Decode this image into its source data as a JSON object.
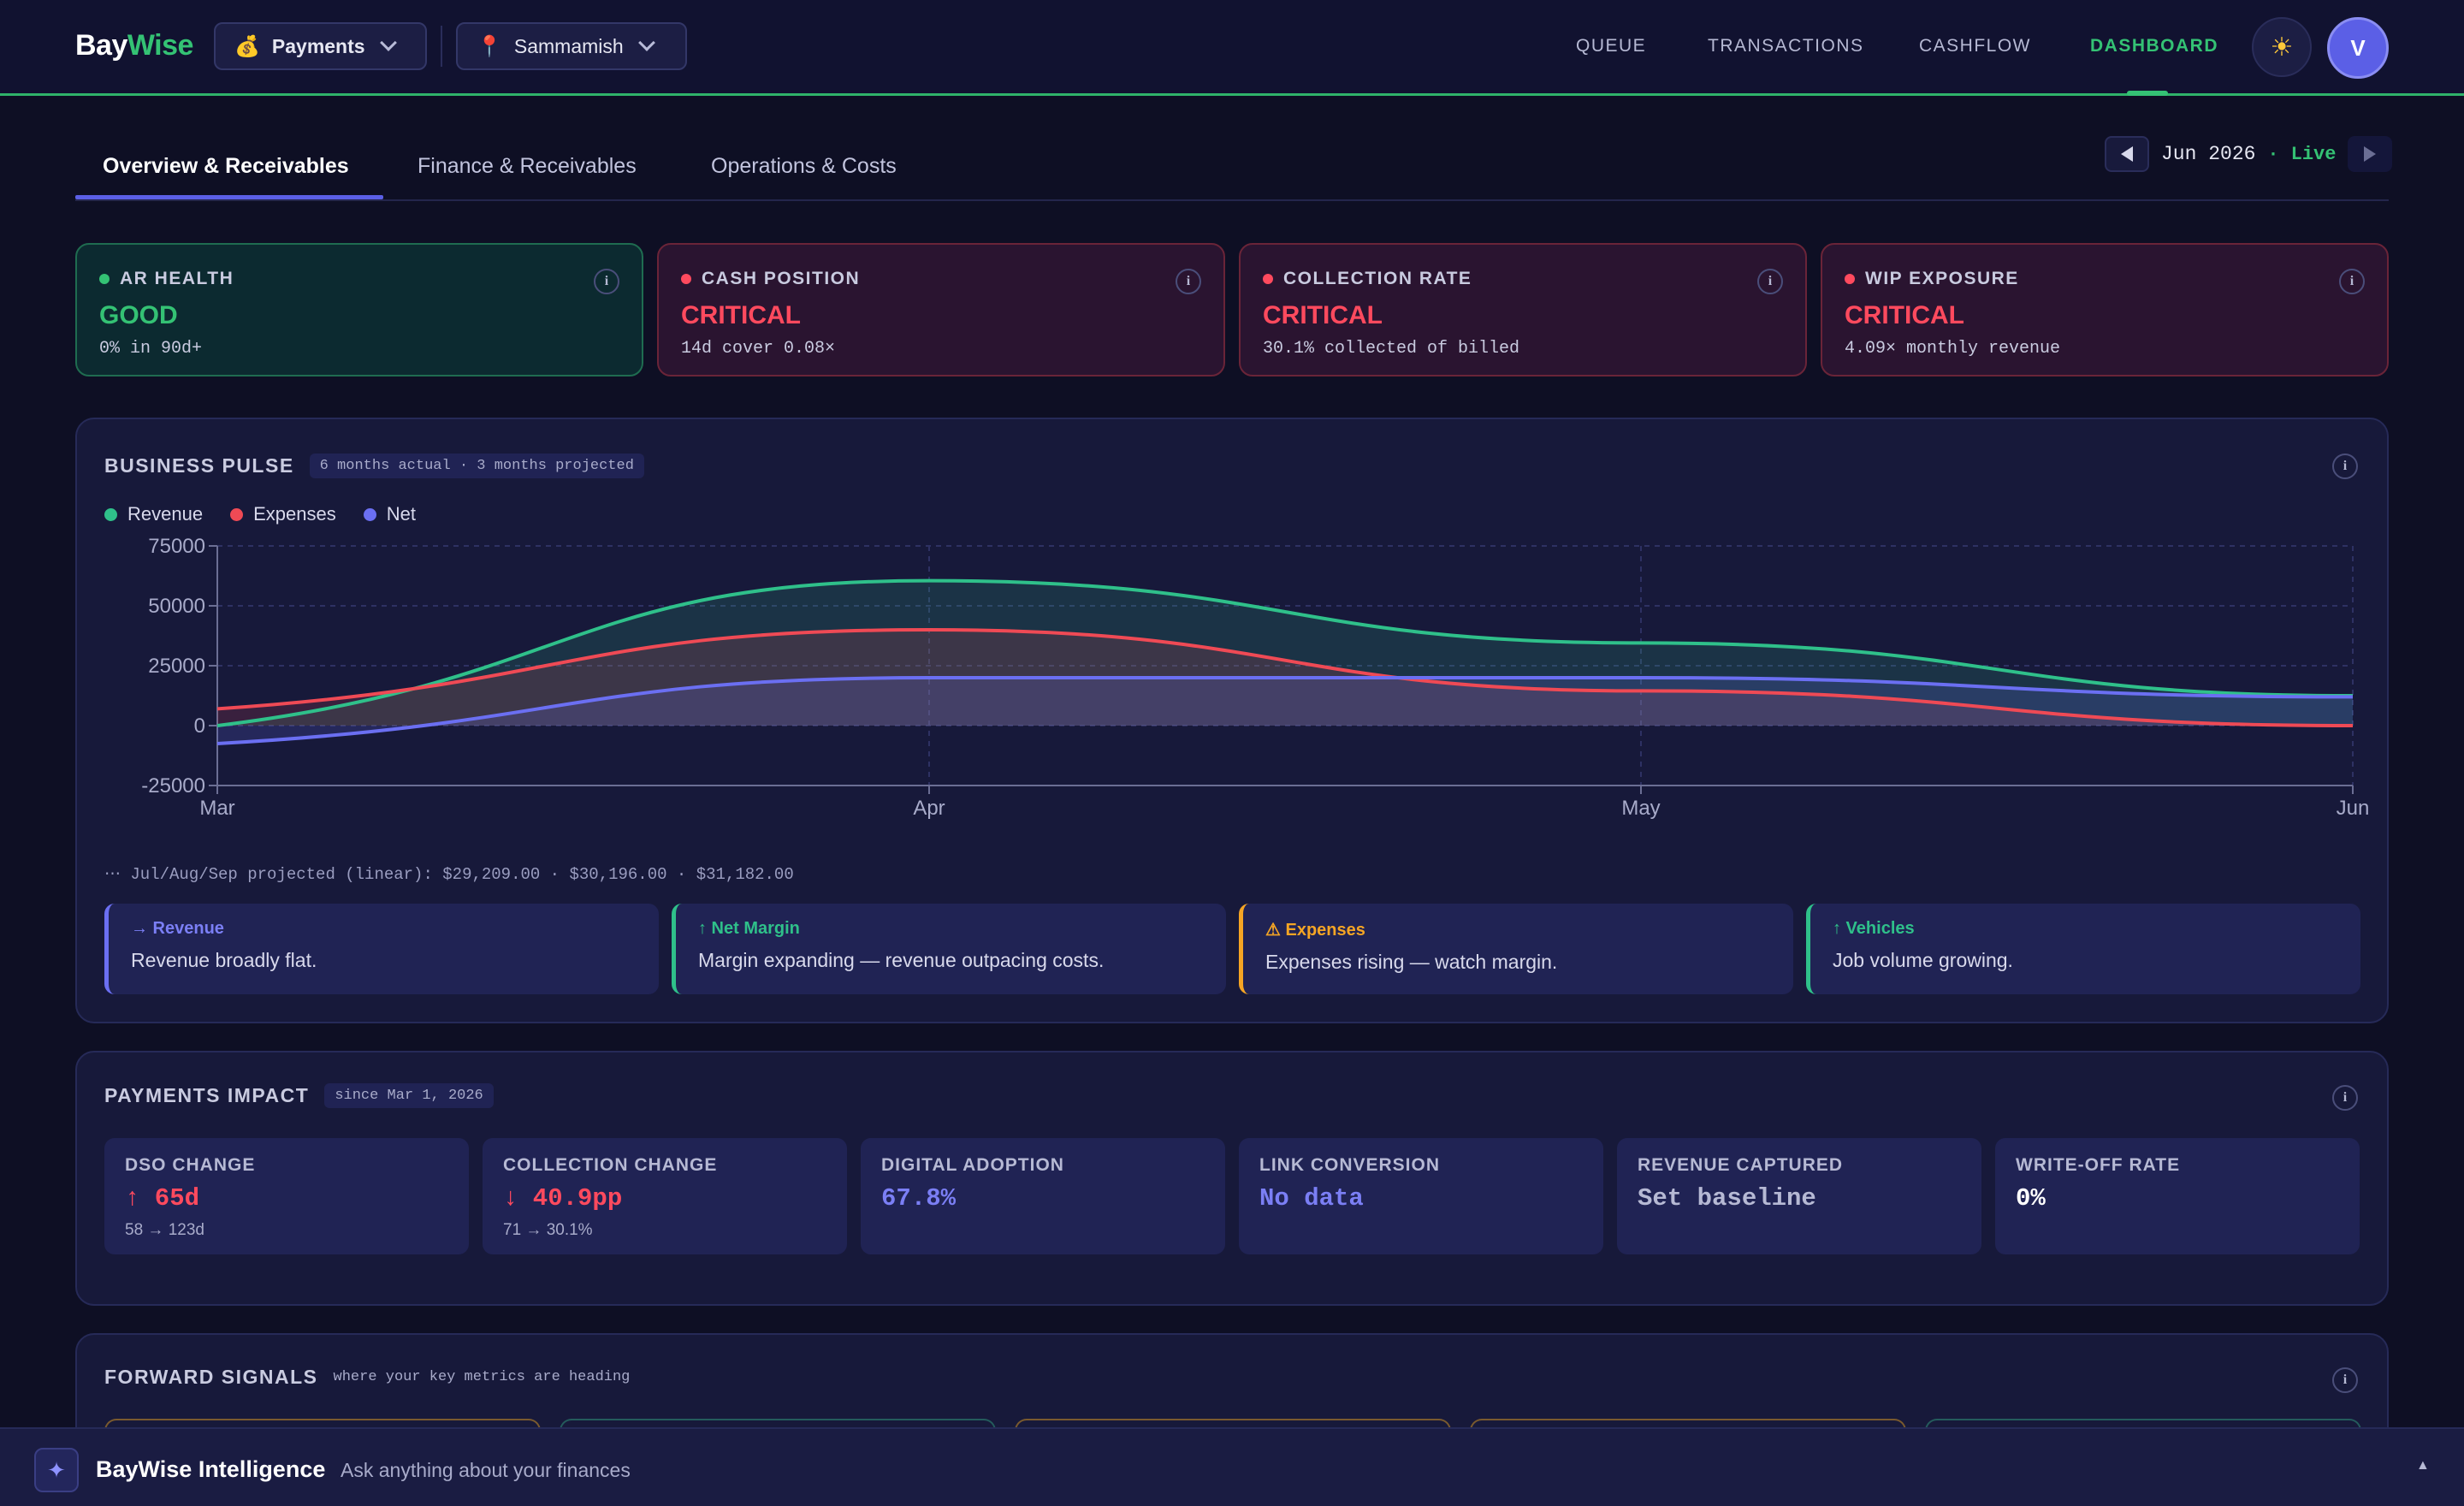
{
  "brand": {
    "part1": "Bay",
    "part2": "Wise"
  },
  "context": {
    "module": {
      "icon": "💰",
      "label": "Payments"
    },
    "location": {
      "icon": "📍",
      "label": "Sammamish"
    }
  },
  "nav": {
    "links": [
      "QUEUE",
      "TRANSACTIONS",
      "CASHFLOW",
      "DASHBOARD"
    ],
    "active": "DASHBOARD",
    "theme_icon": "☀",
    "avatar_initial": "V"
  },
  "tabs": [
    "Overview & Receivables",
    "Finance & Receivables",
    "Operations & Costs"
  ],
  "period": {
    "label": "Jun 2026",
    "separator": "·",
    "live": "Live"
  },
  "status_cards": [
    {
      "title": "AR HEALTH",
      "status": "GOOD",
      "detail": "0% in 90d+",
      "level": "good"
    },
    {
      "title": "CASH POSITION",
      "status": "CRITICAL",
      "detail": "14d cover 0.08×",
      "level": "critical"
    },
    {
      "title": "COLLECTION RATE",
      "status": "CRITICAL",
      "detail": "30.1% collected of billed",
      "level": "critical"
    },
    {
      "title": "WIP EXPOSURE",
      "status": "CRITICAL",
      "detail": "4.09× monthly revenue",
      "level": "critical"
    }
  ],
  "business_pulse": {
    "title": "BUSINESS PULSE",
    "tag": "6 months actual · 3 months projected",
    "projection_note": "⋯ Jul/Aug/Sep projected (linear): $29,209.00 · $30,196.00 · $31,182.00",
    "insights": [
      {
        "title": "→ Revenue",
        "body": "Revenue broadly flat.",
        "color": "#6b6ff2"
      },
      {
        "title": "↑ Net Margin",
        "body": "Margin expanding — revenue outpacing costs.",
        "color": "#2fc08a"
      },
      {
        "title": "⚠ Expenses",
        "body": "Expenses rising — watch margin.",
        "color": "#f5a524"
      },
      {
        "title": "↑ Vehicles",
        "body": "Job volume growing.",
        "color": "#2fc08a"
      }
    ]
  },
  "chart_data": {
    "type": "line",
    "categories": [
      "Mar",
      "Apr",
      "May",
      "Jun"
    ],
    "ylim": [
      -25000,
      75000
    ],
    "yticks": [
      "75000",
      "50000",
      "25000",
      "0",
      "-25000"
    ],
    "ytick_values": [
      75000,
      50000,
      25000,
      0,
      -25000
    ],
    "grid": true,
    "legend_position": "top-left",
    "series": [
      {
        "name": "Revenue",
        "color": "#2fc08a",
        "values": [
          0,
          60500,
          34500,
          12500
        ]
      },
      {
        "name": "Expenses",
        "color": "#ef4a55",
        "values": [
          7000,
          40000,
          14500,
          0
        ]
      },
      {
        "name": "Net",
        "color": "#6b6ff2",
        "values": [
          -7500,
          20000,
          20000,
          12000
        ]
      }
    ]
  },
  "payments_impact": {
    "title": "PAYMENTS IMPACT",
    "tag": "since Mar 1, 2026",
    "metrics": [
      {
        "label": "DSO CHANGE",
        "value": "↑ 65d",
        "sub": "58 → 123d",
        "color": "#ff4a5e"
      },
      {
        "label": "COLLECTION CHANGE",
        "value": "↓ 40.9pp",
        "sub": "71 → 30.1%",
        "color": "#ff4a5e"
      },
      {
        "label": "DIGITAL ADOPTION",
        "value": "67.8%",
        "sub": "",
        "color": "#7b7ff5"
      },
      {
        "label": "LINK CONVERSION",
        "value": "No data",
        "sub": "",
        "color": "#7b7ff5"
      },
      {
        "label": "REVENUE CAPTURED",
        "value": "Set baseline",
        "sub": "",
        "color": "#b6b9d4"
      },
      {
        "label": "WRITE-OFF RATE",
        "value": "0%",
        "sub": "",
        "color": "#ffffff"
      }
    ]
  },
  "forward_signals": {
    "title": "FORWARD SIGNALS",
    "tag": "where your key metrics are heading",
    "peek_colors": [
      "#7a5a2e",
      "#245b5c",
      "#7a5a2e",
      "#7a5a2e",
      "#245b5c"
    ]
  },
  "assistant": {
    "icon": "✦",
    "title": "BayWise Intelligence",
    "subtitle": "Ask anything about your finances",
    "caret": "▲"
  }
}
